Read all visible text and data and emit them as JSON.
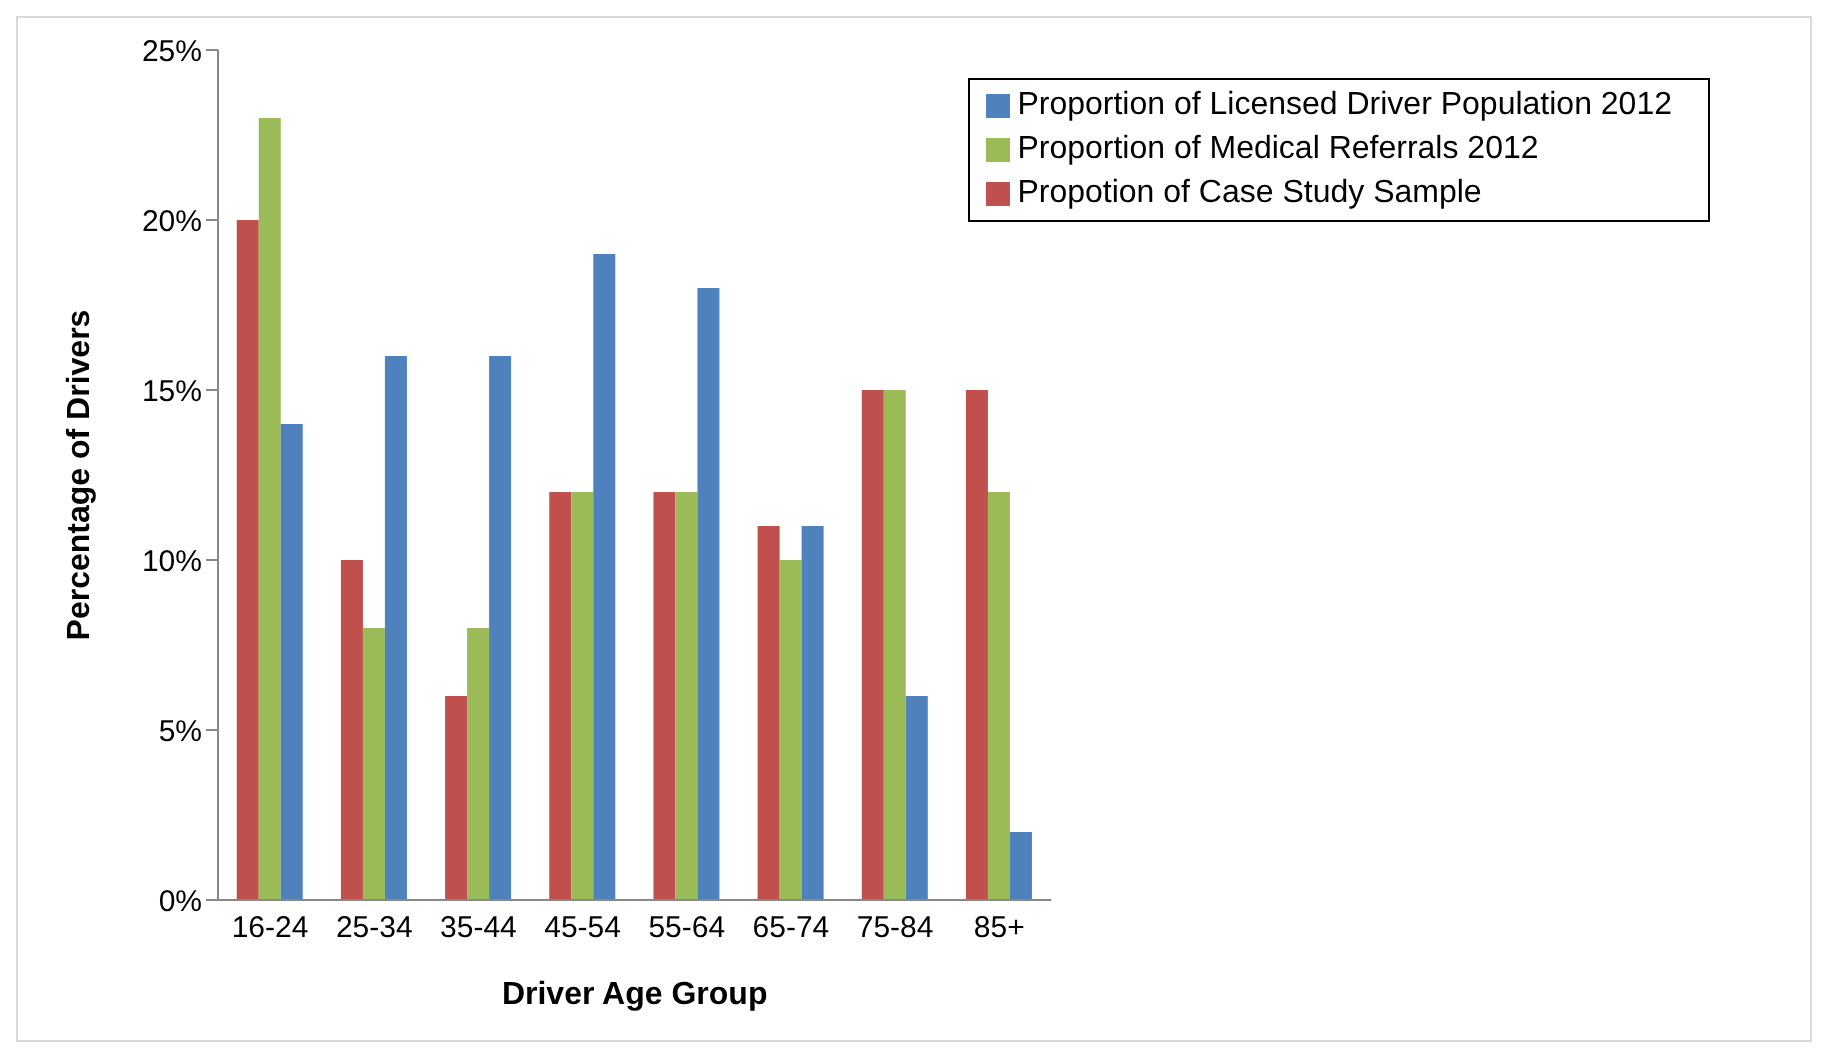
{
  "chart_data": {
    "type": "bar",
    "xlabel": "Driver Age Group",
    "ylabel": "Percentage of Drivers",
    "categories": [
      "16-24",
      "25-34",
      "35-44",
      "45-54",
      "55-64",
      "65-74",
      "75-84",
      "85+"
    ],
    "series": [
      {
        "name": "Propotion of Case Study Sample",
        "color": "#c0504d",
        "values": [
          20,
          10,
          6,
          12,
          12,
          11,
          15,
          15
        ]
      },
      {
        "name": "Proportion of Medical Referrals 2012",
        "color": "#9bbb59",
        "values": [
          23,
          8,
          8,
          12,
          12,
          10,
          15,
          12
        ]
      },
      {
        "name": "Proportion of Licensed Driver Population 2012",
        "color": "#4f81bd",
        "values": [
          14,
          16,
          16,
          19,
          18,
          11,
          6,
          2
        ]
      }
    ],
    "ylim": [
      0,
      25
    ],
    "yticks": [
      {
        "value": 0,
        "label": "0%"
      },
      {
        "value": 5,
        "label": "5%"
      },
      {
        "value": 10,
        "label": "10%"
      },
      {
        "value": 15,
        "label": "15%"
      },
      {
        "value": 20,
        "label": "20%"
      },
      {
        "value": 25,
        "label": "25%"
      }
    ],
    "grid": false,
    "legend": "top right"
  }
}
